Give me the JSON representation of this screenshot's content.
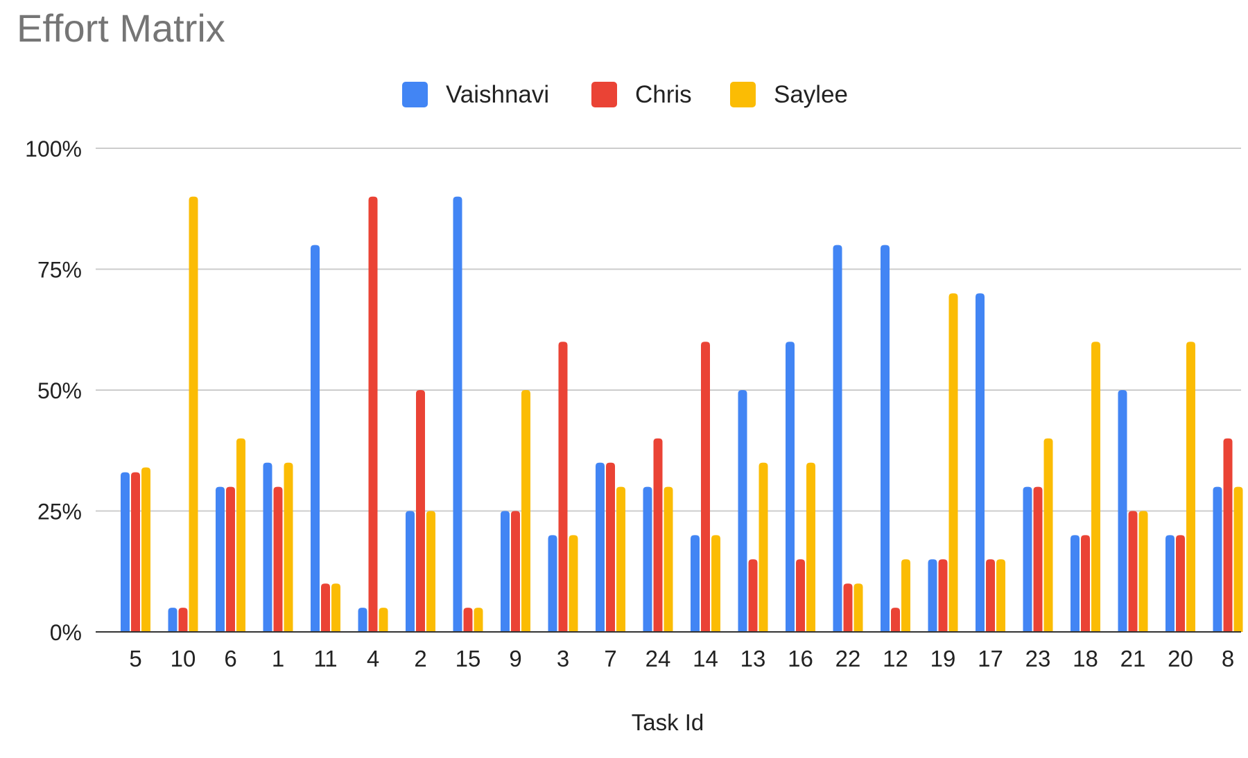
{
  "chart_data": {
    "type": "bar",
    "title": "Effort Matrix",
    "xlabel": "Task Id",
    "ylabel": "",
    "ylim": [
      0,
      100
    ],
    "y_unit": "%",
    "yticks": [
      0,
      25,
      50,
      75,
      100
    ],
    "ytick_labels": [
      "0%",
      "25%",
      "50%",
      "75%",
      "100%"
    ],
    "grid": true,
    "legend_position": "top",
    "categories": [
      "5",
      "10",
      "6",
      "1",
      "11",
      "4",
      "2",
      "15",
      "9",
      "3",
      "7",
      "24",
      "14",
      "13",
      "16",
      "22",
      "12",
      "19",
      "17",
      "23",
      "18",
      "21",
      "20",
      "8"
    ],
    "series": [
      {
        "name": "Vaishnavi",
        "color": "#4285f4",
        "values": [
          33,
          5,
          30,
          35,
          80,
          5,
          25,
          90,
          25,
          20,
          35,
          30,
          20,
          50,
          60,
          80,
          80,
          15,
          70,
          30,
          20,
          50,
          20,
          30
        ]
      },
      {
        "name": "Chris",
        "color": "#ea4335",
        "values": [
          33,
          5,
          30,
          30,
          10,
          90,
          50,
          5,
          25,
          60,
          35,
          40,
          60,
          15,
          15,
          10,
          5,
          15,
          15,
          30,
          20,
          25,
          20,
          40
        ]
      },
      {
        "name": "Saylee",
        "color": "#fbbc04",
        "values": [
          34,
          90,
          40,
          35,
          10,
          5,
          25,
          5,
          50,
          20,
          30,
          30,
          20,
          35,
          35,
          10,
          15,
          70,
          15,
          40,
          60,
          25,
          60,
          30
        ]
      }
    ]
  }
}
